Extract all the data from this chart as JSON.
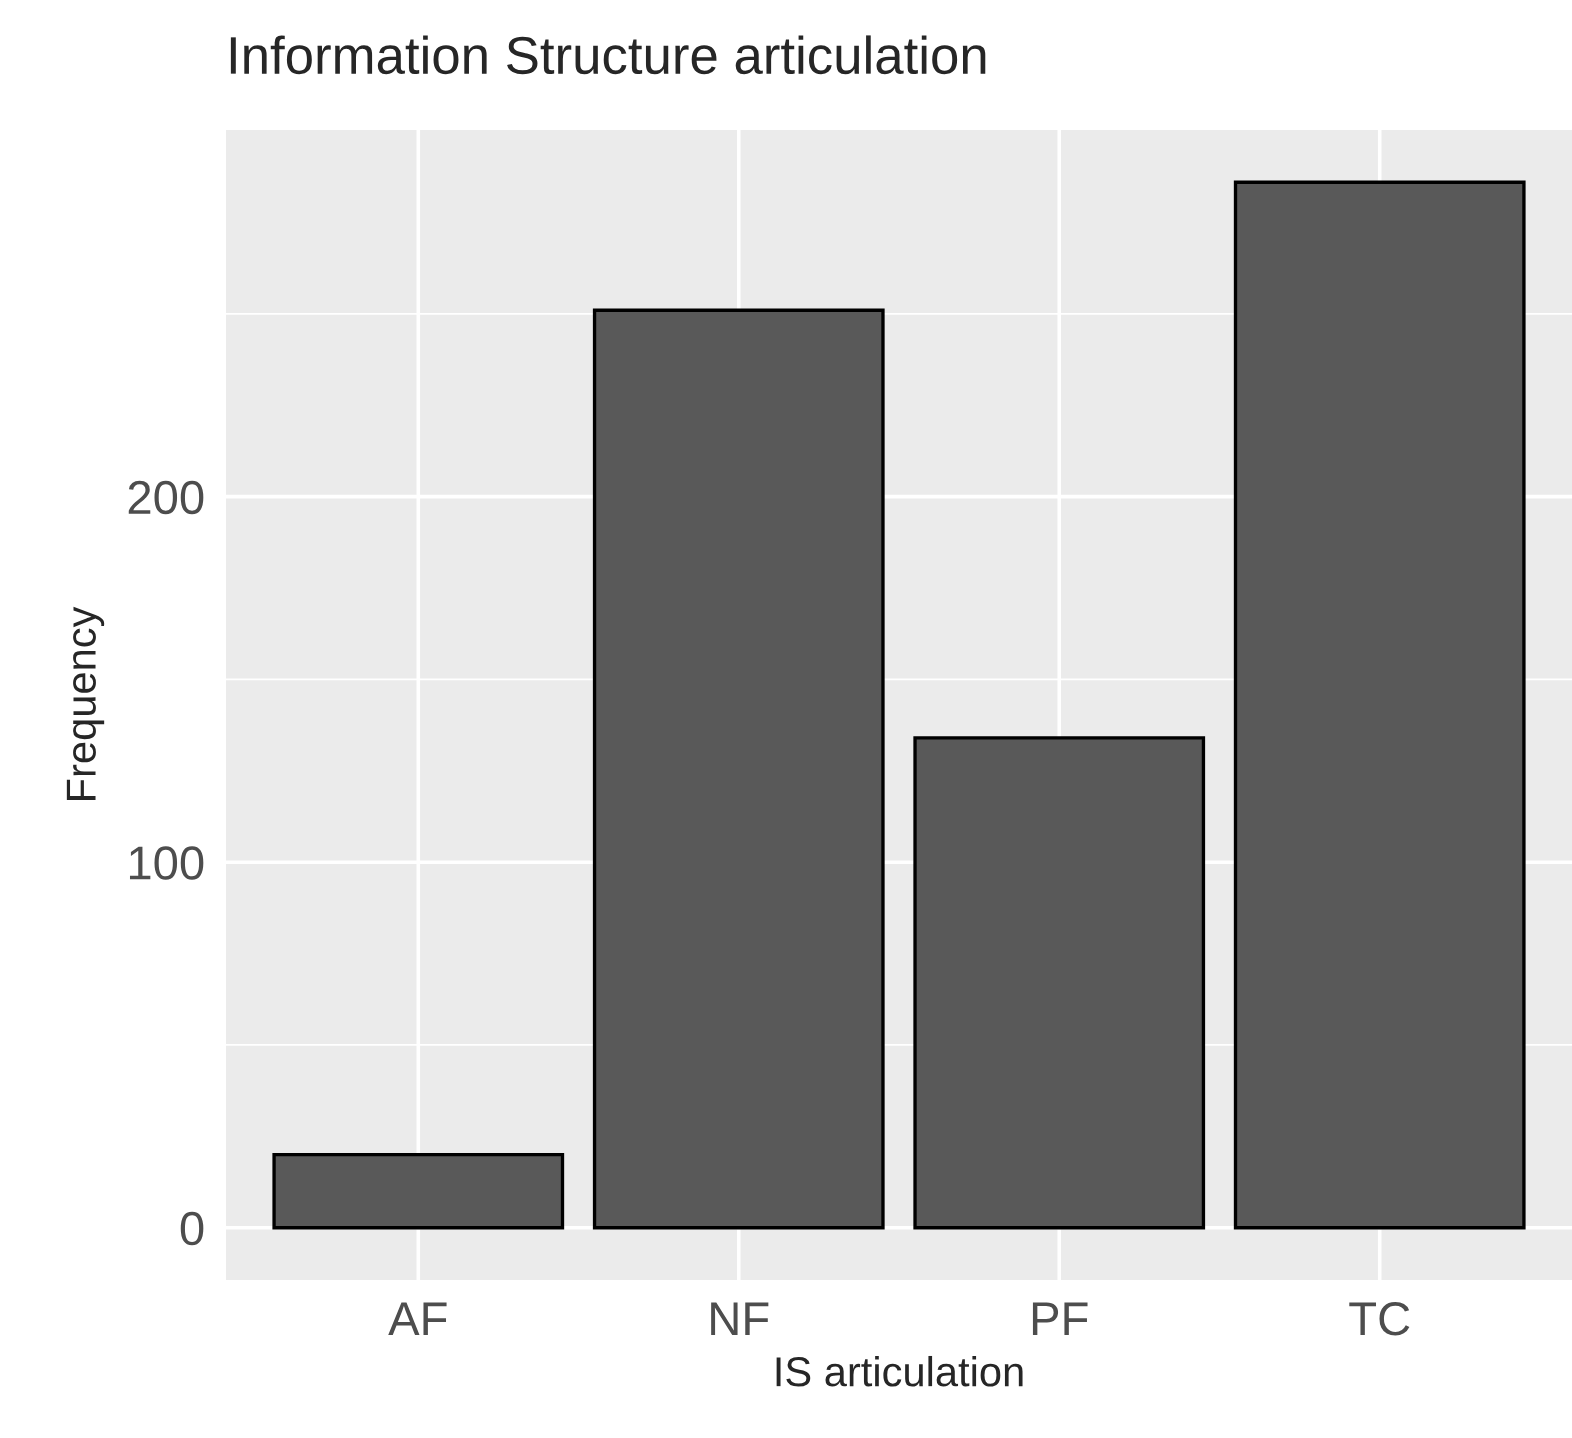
{
  "chart_data": {
    "type": "bar",
    "title": "Information Structure articulation",
    "xlabel": "IS articulation",
    "ylabel": "Frequency",
    "categories": [
      "AF",
      "NF",
      "PF",
      "TC"
    ],
    "values": [
      20,
      251,
      134,
      286
    ],
    "color": "#595959",
    "ylim": [
      -14.3,
      300.3
    ],
    "yticks": [
      0,
      100,
      200
    ],
    "grid": true
  }
}
